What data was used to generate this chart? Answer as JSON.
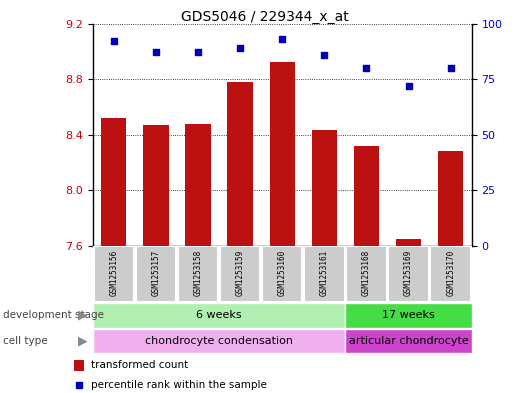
{
  "title": "GDS5046 / 229344_x_at",
  "samples": [
    "GSM1253156",
    "GSM1253157",
    "GSM1253158",
    "GSM1253159",
    "GSM1253160",
    "GSM1253161",
    "GSM1253168",
    "GSM1253169",
    "GSM1253170"
  ],
  "bar_values": [
    8.52,
    8.47,
    8.48,
    8.78,
    8.92,
    8.43,
    8.32,
    7.65,
    8.28
  ],
  "dot_values_pct": [
    92,
    87,
    87,
    89,
    93,
    86,
    80,
    72,
    80
  ],
  "ylim_left": [
    7.6,
    9.2
  ],
  "ylim_right": [
    0,
    100
  ],
  "yticks_left": [
    7.6,
    8.0,
    8.4,
    8.8,
    9.2
  ],
  "yticks_right": [
    0,
    25,
    50,
    75,
    100
  ],
  "bar_color": "#bb1111",
  "dot_color": "#0000bb",
  "bar_width": 0.6,
  "dev_stage_groups": [
    {
      "label": "6 weeks",
      "start": 0,
      "end": 5,
      "color": "#b0f0b0"
    },
    {
      "label": "17 weeks",
      "start": 6,
      "end": 8,
      "color": "#44dd44"
    }
  ],
  "cell_type_groups": [
    {
      "label": "chondrocyte condensation",
      "start": 0,
      "end": 5,
      "color": "#f0b0f0"
    },
    {
      "label": "articular chondrocyte",
      "start": 6,
      "end": 8,
      "color": "#cc44cc"
    }
  ],
  "legend_bar_label": "transformed count",
  "legend_dot_label": "percentile rank within the sample",
  "bg_color": "#ffffff",
  "sample_bg": "#cccccc",
  "left_label_dev": "development stage",
  "left_label_cell": "cell type",
  "left_tick_color": "#cc0000",
  "right_tick_color": "#0000cc"
}
